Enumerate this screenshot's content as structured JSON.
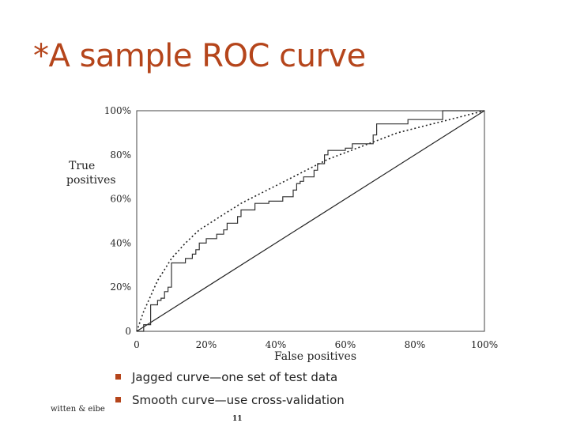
{
  "slide": {
    "title": "*A sample ROC curve",
    "bullets": [
      "Jagged curve—one set of test data",
      "Smooth curve—use cross-validation"
    ],
    "footer": "witten & eibe",
    "page_number": "11",
    "title_color": "#b5451b"
  },
  "chart_data": {
    "type": "line",
    "xlabel": "False positives",
    "ylabel": [
      "True",
      "positives"
    ],
    "x_ticks": [
      "0",
      "20%",
      "40%",
      "60%",
      "80%",
      "100%"
    ],
    "y_ticks": [
      "0",
      "20%",
      "40%",
      "60%",
      "80%",
      "100%"
    ],
    "xlim": [
      0,
      100
    ],
    "ylim": [
      0,
      100
    ],
    "grid": false,
    "series": [
      {
        "style": "solid-step",
        "color": "#333333",
        "x": [
          0,
          2,
          2,
          4,
          4,
          6,
          6,
          7,
          7,
          8,
          8,
          9,
          9,
          10,
          10,
          14,
          14,
          16,
          16,
          17,
          17,
          18,
          18,
          20,
          20,
          23,
          23,
          25,
          25,
          26,
          26,
          29,
          29,
          30,
          30,
          34,
          34,
          38,
          38,
          42,
          42,
          45,
          45,
          46,
          46,
          47,
          47,
          48,
          48,
          51,
          51,
          52,
          52,
          54,
          54,
          55,
          55,
          60,
          60,
          62,
          62,
          68,
          68,
          69,
          69,
          78,
          78,
          88,
          88,
          100
        ],
        "y": [
          0,
          0,
          3,
          3,
          12,
          12,
          14,
          14,
          15,
          15,
          18,
          18,
          20,
          20,
          31,
          31,
          33,
          33,
          35,
          35,
          37,
          37,
          40,
          40,
          42,
          42,
          44,
          44,
          46,
          46,
          49,
          49,
          52,
          52,
          55,
          55,
          58,
          58,
          59,
          59,
          61,
          61,
          64,
          64,
          67,
          67,
          68,
          68,
          70,
          70,
          73,
          73,
          76,
          76,
          80,
          80,
          82,
          82,
          83,
          83,
          85,
          85,
          89,
          89,
          94,
          94,
          96,
          96,
          100,
          100
        ]
      },
      {
        "style": "dotted-smooth",
        "color": "#222222",
        "x": [
          0,
          2,
          4,
          6,
          8,
          10,
          14,
          18,
          22,
          26,
          30,
          35,
          40,
          45,
          50,
          55,
          60,
          65,
          70,
          75,
          80,
          85,
          90,
          95,
          100
        ],
        "y": [
          0,
          9,
          16,
          23,
          28,
          33,
          40,
          46,
          50,
          54,
          58,
          62,
          66,
          70,
          74,
          78,
          81,
          84,
          87,
          90,
          92,
          94,
          96,
          98,
          100
        ]
      },
      {
        "style": "solid-diagonal",
        "color": "#222222",
        "x": [
          0,
          100
        ],
        "y": [
          0,
          100
        ]
      }
    ]
  }
}
